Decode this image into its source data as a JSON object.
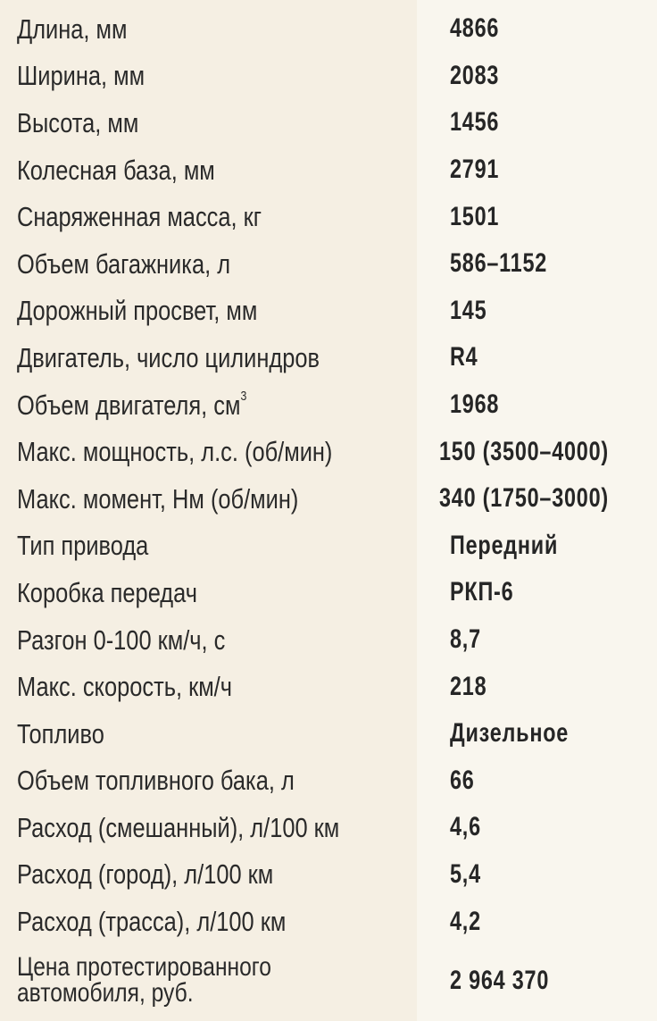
{
  "specs": [
    {
      "label": "Длина, мм",
      "value": "4866"
    },
    {
      "label": "Ширина, мм",
      "value": "2083"
    },
    {
      "label": "Высота, мм",
      "value": "1456"
    },
    {
      "label": "Колесная база, мм",
      "value": "2791"
    },
    {
      "label": "Снаряженная масса, кг",
      "value": "1501"
    },
    {
      "label": "Объем багажника, л",
      "value": "586–1152"
    },
    {
      "label": "Дорожный просвет, мм",
      "value": "145"
    },
    {
      "label": "Двигатель, число цилиндров",
      "value": "R4"
    },
    {
      "label": "Объем двигателя, см",
      "sup": "3",
      "value": "1968"
    },
    {
      "label": "Макс. мощность, л.с. (об/мин)",
      "value": "150 (3500–4000)"
    },
    {
      "label": "Макс. момент, Нм (об/мин)",
      "value": "340 (1750–3000)"
    },
    {
      "label": "Тип привода",
      "value": "Передний"
    },
    {
      "label": "Коробка передач",
      "value": "РКП-6"
    },
    {
      "label": "Разгон 0-100 км/ч, с",
      "value": "8,7"
    },
    {
      "label": "Макс. скорость, км/ч",
      "value": "218"
    },
    {
      "label": "Топливо",
      "value": "Дизельное"
    },
    {
      "label": "Объем топливного бака, л",
      "value": "66"
    },
    {
      "label": "Расход (смешанный), л/100 км",
      "value": "4,6"
    },
    {
      "label": "Расход (город), л/100 км",
      "value": "5,4"
    },
    {
      "label": "Расход (трасса), л/100 км",
      "value": "4,2"
    },
    {
      "label": "Цена протестированного автомобиля, руб.",
      "value": "2 964 370"
    }
  ],
  "colors": {
    "label_bg": "#f5efe3",
    "value_bg": "#f9f6ee",
    "text": "#2a2a2a"
  }
}
